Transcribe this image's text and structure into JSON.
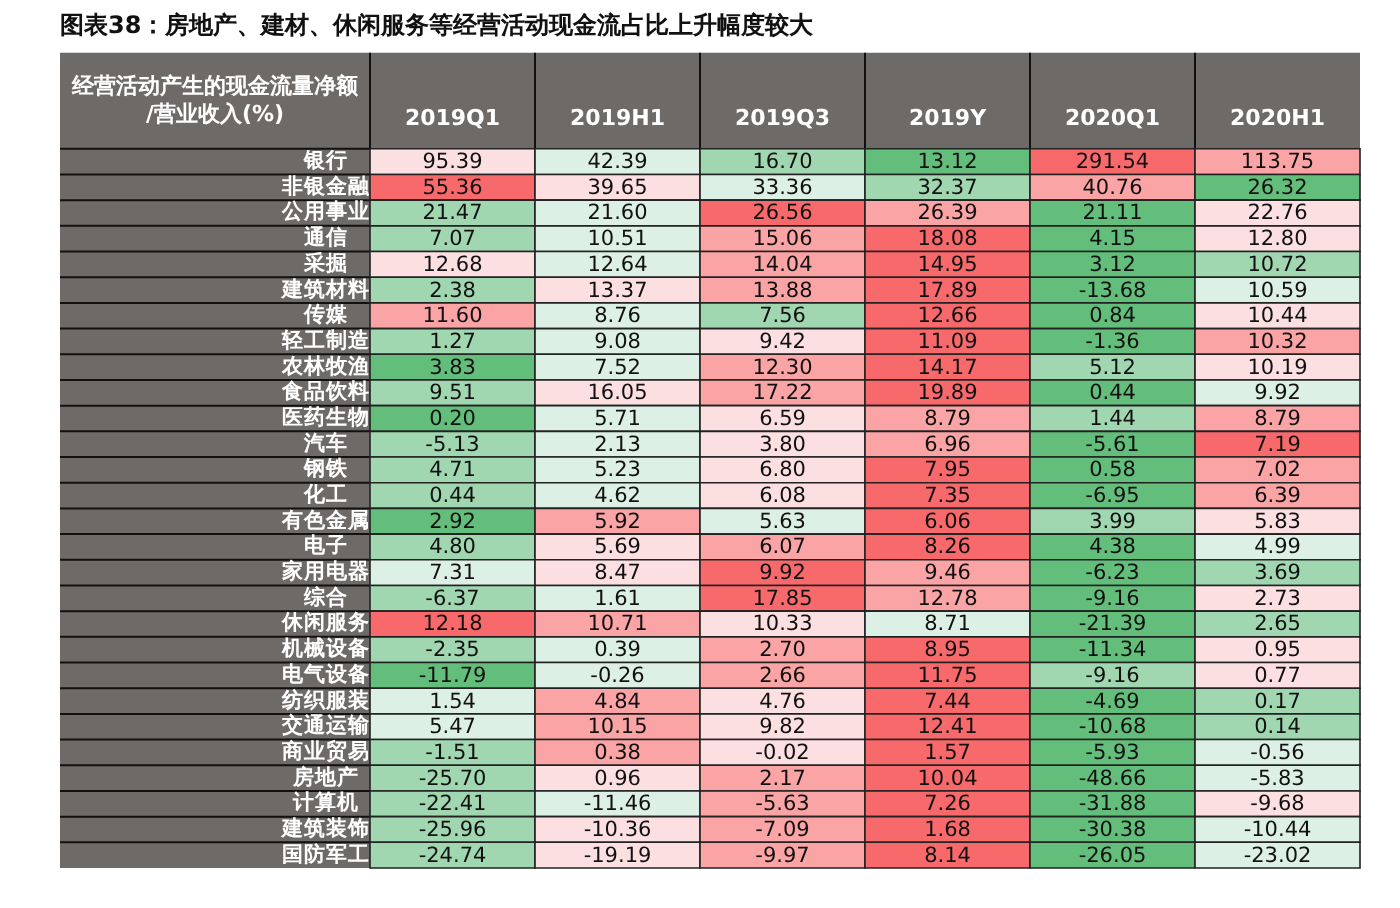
{
  "chart_data": {
    "type": "heatmap",
    "title": "图表38：房地产、建材、休闲服务等经营活动现金流占比上升幅度较大",
    "ylabel": "经营活动产生的现金流量净额/营业收入(%)",
    "cell_labels": [
      [
        "95.39",
        "42.39",
        "16.70",
        "13.12",
        "291.54",
        "113.75"
      ],
      [
        "55.36",
        "39.65",
        "33.36",
        "32.37",
        "40.76",
        "26.32"
      ],
      [
        "21.47",
        "21.60",
        "26.56",
        "26.39",
        "21.11",
        "22.76"
      ],
      [
        "7.07",
        "10.51",
        "15.06",
        "18.08",
        "4.15",
        "12.80"
      ],
      [
        "12.68",
        "12.64",
        "14.04",
        "14.95",
        "3.12",
        "10.72"
      ],
      [
        "2.38",
        "13.37",
        "13.88",
        "17.89",
        "-13.68",
        "10.59"
      ],
      [
        "11.60",
        "8.76",
        "7.56",
        "12.66",
        "0.84",
        "10.44"
      ],
      [
        "1.27",
        "9.08",
        "9.42",
        "11.09",
        "-1.36",
        "10.32"
      ],
      [
        "3.83",
        "7.52",
        "12.30",
        "14.17",
        "5.12",
        "10.19"
      ],
      [
        "9.51",
        "16.05",
        "17.22",
        "19.89",
        "0.44",
        "9.92"
      ],
      [
        "0.20",
        "5.71",
        "6.59",
        "8.79",
        "1.44",
        "8.79"
      ],
      [
        "-5.13",
        "2.13",
        "3.80",
        "6.96",
        "-5.61",
        "7.19"
      ],
      [
        "4.71",
        "5.23",
        "6.80",
        "7.95",
        "0.58",
        "7.02"
      ],
      [
        "0.44",
        "4.62",
        "6.08",
        "7.35",
        "-6.95",
        "6.39"
      ],
      [
        "2.92",
        "5.92",
        "5.63",
        "6.06",
        "3.99",
        "5.83"
      ],
      [
        "4.80",
        "5.69",
        "6.07",
        "8.26",
        "4.38",
        "4.99"
      ],
      [
        "7.31",
        "8.47",
        "9.92",
        "9.46",
        "-6.23",
        "3.69"
      ],
      [
        "-6.37",
        "1.61",
        "17.85",
        "12.78",
        "-9.16",
        "2.73"
      ],
      [
        "12.18",
        "10.71",
        "10.33",
        "8.71",
        "-21.39",
        "2.65"
      ],
      [
        "-2.35",
        "0.39",
        "2.70",
        "8.95",
        "-11.34",
        "0.95"
      ],
      [
        "-11.79",
        "-0.26",
        "2.66",
        "11.75",
        "-9.16",
        "0.77"
      ],
      [
        "1.54",
        "4.84",
        "4.76",
        "7.44",
        "-4.69",
        "0.17"
      ],
      [
        "5.47",
        "10.15",
        "9.82",
        "12.41",
        "-10.68",
        "0.14"
      ],
      [
        "-1.51",
        "0.38",
        "-0.02",
        "1.57",
        "-5.93",
        "-0.56"
      ],
      [
        "-25.70",
        "0.96",
        "2.17",
        "10.04",
        "-48.66",
        "-5.83"
      ],
      [
        "-22.41",
        "-11.46",
        "-5.63",
        "7.26",
        "-31.88",
        "-9.68"
      ],
      [
        "-25.96",
        "-10.36",
        "-7.09",
        "1.68",
        "-30.38",
        "-10.44"
      ],
      [
        "-24.74",
        "-19.19",
        "-9.97",
        "8.14",
        "-26.05",
        "-23.02"
      ]
    ],
    "categories": [
      "2019Q1",
      "2019H1",
      "2019Q3",
      "2019Y",
      "2020Q1",
      "2020H1"
    ],
    "y_categories": [
      "银行",
      "非银金融",
      "公用事业",
      "通信",
      "采掘",
      "建筑材料",
      "传媒",
      "轻工制造",
      "农林牧渔",
      "食品饮料",
      "医药生物",
      "汽车",
      "钢铁",
      "化工",
      "有色金属",
      "电子",
      "家用电器",
      "综合",
      "休闲服务",
      "机械设备",
      "电气设备",
      "纺织服装",
      "交通运输",
      "商业贸易",
      "房地产",
      "计算机",
      "建筑装饰",
      "国防军工"
    ],
    "cells": [
      [
        95.39,
        42.39,
        16.7,
        13.12,
        291.54,
        113.75
      ],
      [
        55.36,
        39.65,
        33.36,
        32.37,
        40.76,
        26.32
      ],
      [
        21.47,
        21.6,
        26.56,
        26.39,
        21.11,
        22.76
      ],
      [
        7.07,
        10.51,
        15.06,
        18.08,
        4.15,
        12.8
      ],
      [
        12.68,
        12.64,
        14.04,
        14.95,
        3.12,
        10.72
      ],
      [
        2.38,
        13.37,
        13.88,
        17.89,
        -13.68,
        10.59
      ],
      [
        11.6,
        8.76,
        7.56,
        12.66,
        0.84,
        10.44
      ],
      [
        1.27,
        9.08,
        9.42,
        11.09,
        -1.36,
        10.32
      ],
      [
        3.83,
        7.52,
        12.3,
        14.17,
        5.12,
        10.19
      ],
      [
        9.51,
        16.05,
        17.22,
        19.89,
        0.44,
        9.92
      ],
      [
        0.2,
        5.71,
        6.59,
        8.79,
        1.44,
        8.79
      ],
      [
        -5.13,
        2.13,
        3.8,
        6.96,
        -5.61,
        7.19
      ],
      [
        4.71,
        5.23,
        6.8,
        7.95,
        0.58,
        7.02
      ],
      [
        0.44,
        4.62,
        6.08,
        7.35,
        -6.95,
        6.39
      ],
      [
        2.92,
        5.92,
        5.63,
        6.06,
        3.99,
        5.83
      ],
      [
        4.8,
        5.69,
        6.07,
        8.26,
        4.38,
        4.99
      ],
      [
        7.31,
        8.47,
        9.92,
        9.46,
        -6.23,
        3.69
      ],
      [
        -6.37,
        1.61,
        17.85,
        12.78,
        -9.16,
        2.73
      ],
      [
        12.18,
        10.71,
        10.33,
        8.71,
        -21.39,
        2.65
      ],
      [
        -2.35,
        0.39,
        2.7,
        8.95,
        -11.34,
        0.95
      ],
      [
        -11.79,
        -0.26,
        2.66,
        11.75,
        -9.16,
        0.77
      ],
      [
        1.54,
        4.84,
        4.76,
        7.44,
        -4.69,
        0.17
      ],
      [
        5.47,
        10.15,
        9.82,
        12.41,
        -10.68,
        0.14
      ],
      [
        -1.51,
        0.38,
        -0.02,
        1.57,
        -5.93,
        -0.56
      ],
      [
        -25.7,
        0.96,
        2.17,
        10.04,
        -48.66,
        -5.83
      ],
      [
        -22.41,
        -11.46,
        -5.63,
        7.26,
        -31.88,
        -9.68
      ],
      [
        -25.96,
        -10.36,
        -7.09,
        1.68,
        -30.38,
        -10.44
      ],
      [
        -24.74,
        -19.19,
        -9.97,
        8.14,
        -26.05,
        -23.02
      ]
    ]
  }
}
